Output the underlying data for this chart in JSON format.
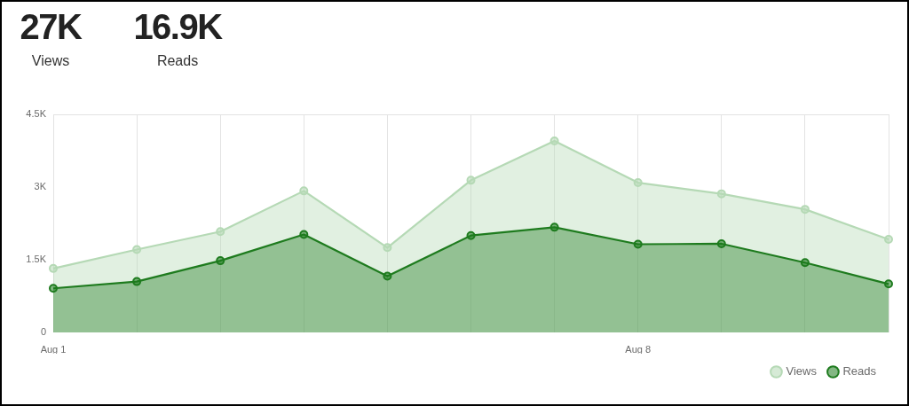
{
  "chart_data": {
    "type": "area",
    "annotations": [
      "27K",
      "Views",
      "16.9K",
      "Reads"
    ],
    "categories": [
      "Aug 1",
      null,
      null,
      null,
      null,
      null,
      null,
      "Aug 8",
      null,
      null,
      null
    ],
    "series": [
      {
        "name": "Views",
        "color": "#b5d9b5",
        "values": [
          1320,
          1710,
          2080,
          2920,
          1750,
          3140,
          3950,
          3090,
          2860,
          2540,
          1920
        ]
      },
      {
        "name": "Reads",
        "color": "#1e7b1e",
        "values": [
          910,
          1050,
          1480,
          2020,
          1160,
          2000,
          2170,
          1820,
          1830,
          1440,
          1000
        ]
      }
    ],
    "ylim": [
      0,
      4500
    ],
    "yticks": [
      0,
      {
        "value": 1500,
        "label": "1.5K"
      },
      {
        "value": 3000,
        "label": "3K"
      },
      {
        "value": 4500,
        "label": "4.5K"
      }
    ],
    "grid": "x",
    "legend": "bottom right",
    "marker": "circle"
  }
}
